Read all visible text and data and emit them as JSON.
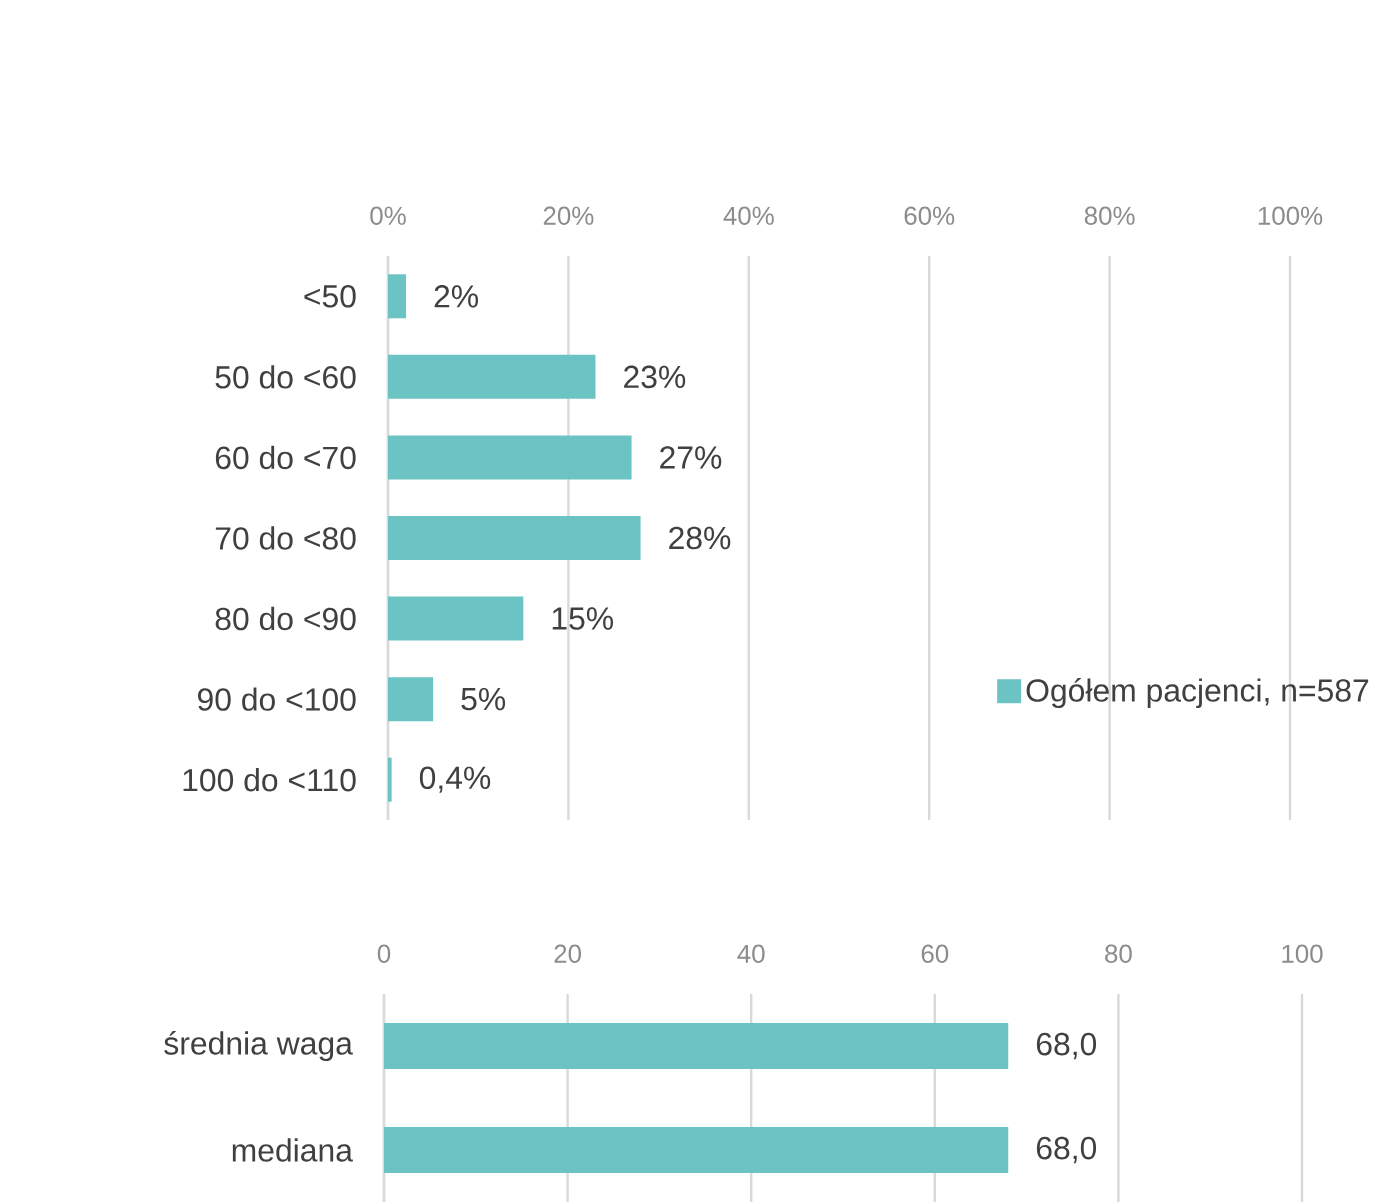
{
  "chart_data": [
    {
      "type": "bar",
      "orientation": "horizontal",
      "categories": [
        "<50",
        "50 do <60",
        "60 do <70",
        "70 do <80",
        "80 do <90",
        "90 do <100",
        "100 do <110"
      ],
      "series": [
        {
          "name": "Ogółem pacjenci, n=587",
          "color": "#6cc3c4",
          "values": [
            2,
            23,
            27,
            28,
            15,
            5,
            0.4
          ],
          "value_labels": [
            "2%",
            "23%",
            "27%",
            "28%",
            "15%",
            "5%",
            "0,4%"
          ]
        }
      ],
      "xlim": [
        0,
        100
      ],
      "xticks": [
        {
          "value": 0,
          "label": "0%"
        },
        {
          "value": 20,
          "label": "20%"
        },
        {
          "value": 40,
          "label": "40%"
        },
        {
          "value": 60,
          "label": "60%"
        },
        {
          "value": 80,
          "label": "80%"
        },
        {
          "value": 100,
          "label": "100%"
        }
      ],
      "grid": "x",
      "legend": "bottom right"
    },
    {
      "type": "bar",
      "orientation": "horizontal",
      "categories": [
        "średnia waga",
        "mediana"
      ],
      "values": [
        68.0,
        68.0
      ],
      "value_labels": [
        "68,0",
        "68,0"
      ],
      "color": "#6cc3c4",
      "xlim": [
        0,
        100
      ],
      "xticks": [
        0,
        20,
        40,
        60,
        80,
        100
      ],
      "grid": "x"
    }
  ]
}
